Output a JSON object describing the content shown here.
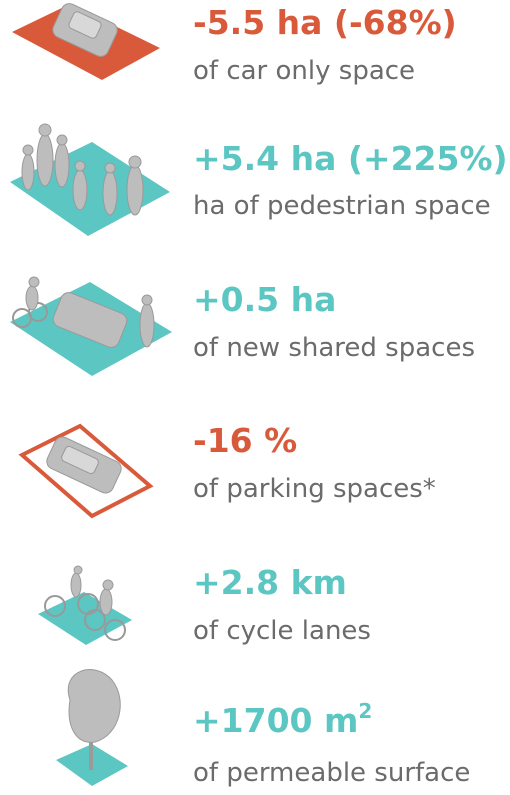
{
  "items": [
    {
      "value": "-5.5 ha (-68%)",
      "description": "of car only space"
    },
    {
      "value": "+5.4 ha (+225%)",
      "description": "ha of pedestrian space"
    },
    {
      "value": "+0.5 ha",
      "description": "of new shared spaces"
    },
    {
      "value": "-16 %",
      "description": "of parking spaces*"
    },
    {
      "value": "+2.8 km",
      "description": "of cycle lanes"
    },
    {
      "value": "+1700 m",
      "superscript": "2",
      "description": "of permeable surface"
    }
  ]
}
